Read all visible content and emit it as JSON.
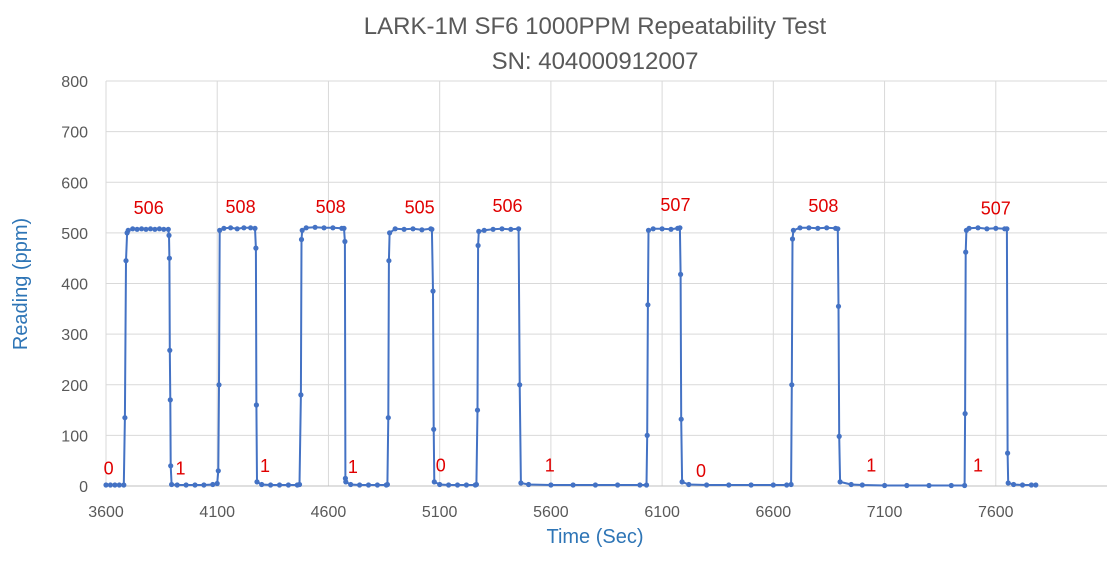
{
  "chart_data": {
    "type": "line",
    "title": "LARK-1M SF6 1000PPM Repeatability Test",
    "subtitle": "SN: 404000912007",
    "xlabel": "Time (Sec)",
    "ylabel": "Reading (ppm)",
    "xlim": [
      3600,
      8100
    ],
    "ylim": [
      0,
      800
    ],
    "x_ticks": [
      "3600",
      "4100",
      "4600",
      "5100",
      "5600",
      "6100",
      "6600",
      "7100",
      "7600"
    ],
    "y_ticks": [
      "0",
      "100",
      "200",
      "300",
      "400",
      "500",
      "600",
      "700",
      "800"
    ],
    "grid": true,
    "legend": "none",
    "colors": {
      "series": "#4472C4",
      "annotation": "#E00000",
      "axis_title": "#2E75B6",
      "text": "#595959"
    },
    "series": [
      {
        "markers": true,
        "points": [
          [
            3600,
            2
          ],
          [
            3620,
            2
          ],
          [
            3640,
            2
          ],
          [
            3660,
            2
          ],
          [
            3680,
            2
          ],
          [
            3685,
            135
          ],
          [
            3690,
            445
          ],
          [
            3695,
            500
          ],
          [
            3700,
            505
          ],
          [
            3720,
            508
          ],
          [
            3740,
            507
          ],
          [
            3760,
            508
          ],
          [
            3780,
            507
          ],
          [
            3800,
            508
          ],
          [
            3820,
            507
          ],
          [
            3840,
            508
          ],
          [
            3860,
            507
          ],
          [
            3880,
            507
          ],
          [
            3883,
            495
          ],
          [
            3885,
            450
          ],
          [
            3887,
            268
          ],
          [
            3889,
            170
          ],
          [
            3891,
            40
          ],
          [
            3895,
            3
          ],
          [
            3920,
            2
          ],
          [
            3960,
            2
          ],
          [
            4000,
            2
          ],
          [
            4040,
            2
          ],
          [
            4080,
            3
          ],
          [
            4100,
            5
          ],
          [
            4105,
            30
          ],
          [
            4108,
            200
          ],
          [
            4111,
            505
          ],
          [
            4130,
            509
          ],
          [
            4160,
            510
          ],
          [
            4190,
            508
          ],
          [
            4220,
            510
          ],
          [
            4250,
            510
          ],
          [
            4270,
            509
          ],
          [
            4274,
            470
          ],
          [
            4276,
            160
          ],
          [
            4279,
            8
          ],
          [
            4300,
            3
          ],
          [
            4340,
            2
          ],
          [
            4380,
            2
          ],
          [
            4420,
            2
          ],
          [
            4460,
            2
          ],
          [
            4470,
            3
          ],
          [
            4476,
            180
          ],
          [
            4479,
            487
          ],
          [
            4482,
            505
          ],
          [
            4500,
            510
          ],
          [
            4540,
            511
          ],
          [
            4580,
            510
          ],
          [
            4620,
            510
          ],
          [
            4660,
            509
          ],
          [
            4670,
            509
          ],
          [
            4674,
            483
          ],
          [
            4676,
            15
          ],
          [
            4678,
            8
          ],
          [
            4700,
            3
          ],
          [
            4740,
            2
          ],
          [
            4780,
            2
          ],
          [
            4820,
            2
          ],
          [
            4860,
            2
          ],
          [
            4865,
            3
          ],
          [
            4869,
            135
          ],
          [
            4872,
            445
          ],
          [
            4875,
            500
          ],
          [
            4900,
            508
          ],
          [
            4940,
            507
          ],
          [
            4980,
            508
          ],
          [
            5020,
            506
          ],
          [
            5060,
            508
          ],
          [
            5065,
            507
          ],
          [
            5070,
            385
          ],
          [
            5073,
            112
          ],
          [
            5076,
            8
          ],
          [
            5100,
            3
          ],
          [
            5140,
            2
          ],
          [
            5180,
            2
          ],
          [
            5220,
            2
          ],
          [
            5260,
            2
          ],
          [
            5265,
            3
          ],
          [
            5270,
            150
          ],
          [
            5273,
            475
          ],
          [
            5276,
            503
          ],
          [
            5300,
            505
          ],
          [
            5340,
            507
          ],
          [
            5380,
            508
          ],
          [
            5420,
            507
          ],
          [
            5455,
            508
          ],
          [
            5460,
            200
          ],
          [
            5465,
            6
          ],
          [
            5500,
            3
          ],
          [
            5600,
            2
          ],
          [
            5700,
            2
          ],
          [
            5800,
            2
          ],
          [
            5900,
            2
          ],
          [
            6000,
            2
          ],
          [
            6030,
            2
          ],
          [
            6033,
            100
          ],
          [
            6036,
            358
          ],
          [
            6039,
            505
          ],
          [
            6060,
            508
          ],
          [
            6100,
            508
          ],
          [
            6140,
            507
          ],
          [
            6170,
            509
          ],
          [
            6180,
            510
          ],
          [
            6183,
            418
          ],
          [
            6186,
            132
          ],
          [
            6190,
            8
          ],
          [
            6220,
            3
          ],
          [
            6300,
            2
          ],
          [
            6400,
            2
          ],
          [
            6500,
            2
          ],
          [
            6600,
            2
          ],
          [
            6660,
            2
          ],
          [
            6680,
            3
          ],
          [
            6683,
            200
          ],
          [
            6686,
            488
          ],
          [
            6690,
            505
          ],
          [
            6720,
            510
          ],
          [
            6760,
            510
          ],
          [
            6800,
            509
          ],
          [
            6840,
            510
          ],
          [
            6880,
            509
          ],
          [
            6890,
            508
          ],
          [
            6893,
            355
          ],
          [
            6896,
            98
          ],
          [
            6900,
            8
          ],
          [
            6950,
            3
          ],
          [
            7000,
            2
          ],
          [
            7100,
            1
          ],
          [
            7200,
            1
          ],
          [
            7300,
            1
          ],
          [
            7400,
            1
          ],
          [
            7460,
            1
          ],
          [
            7462,
            143
          ],
          [
            7465,
            462
          ],
          [
            7468,
            505
          ],
          [
            7480,
            509
          ],
          [
            7520,
            510
          ],
          [
            7560,
            508
          ],
          [
            7600,
            509
          ],
          [
            7640,
            508
          ],
          [
            7650,
            508
          ],
          [
            7653,
            65
          ],
          [
            7656,
            6
          ],
          [
            7680,
            3
          ],
          [
            7720,
            2
          ],
          [
            7760,
            2
          ],
          [
            7780,
            2
          ]
        ]
      }
    ],
    "annotations": [
      {
        "text": "506",
        "x": 3792,
        "y": 537
      },
      {
        "text": "508",
        "x": 4205,
        "y": 539
      },
      {
        "text": "508",
        "x": 4610,
        "y": 539
      },
      {
        "text": "505",
        "x": 5010,
        "y": 538
      },
      {
        "text": "506",
        "x": 5405,
        "y": 541
      },
      {
        "text": "507",
        "x": 6160,
        "y": 543
      },
      {
        "text": "508",
        "x": 6825,
        "y": 541
      },
      {
        "text": "507",
        "x": 7600,
        "y": 536
      },
      {
        "text": "0",
        "x": 3612,
        "y": 23
      },
      {
        "text": "1",
        "x": 3935,
        "y": 23
      },
      {
        "text": "1",
        "x": 4315,
        "y": 28
      },
      {
        "text": "1",
        "x": 4710,
        "y": 26
      },
      {
        "text": "0",
        "x": 5105,
        "y": 29
      },
      {
        "text": "1",
        "x": 5595,
        "y": 29
      },
      {
        "text": "0",
        "x": 6275,
        "y": 18
      },
      {
        "text": "1",
        "x": 7040,
        "y": 29
      },
      {
        "text": "1",
        "x": 7520,
        "y": 29
      }
    ]
  }
}
